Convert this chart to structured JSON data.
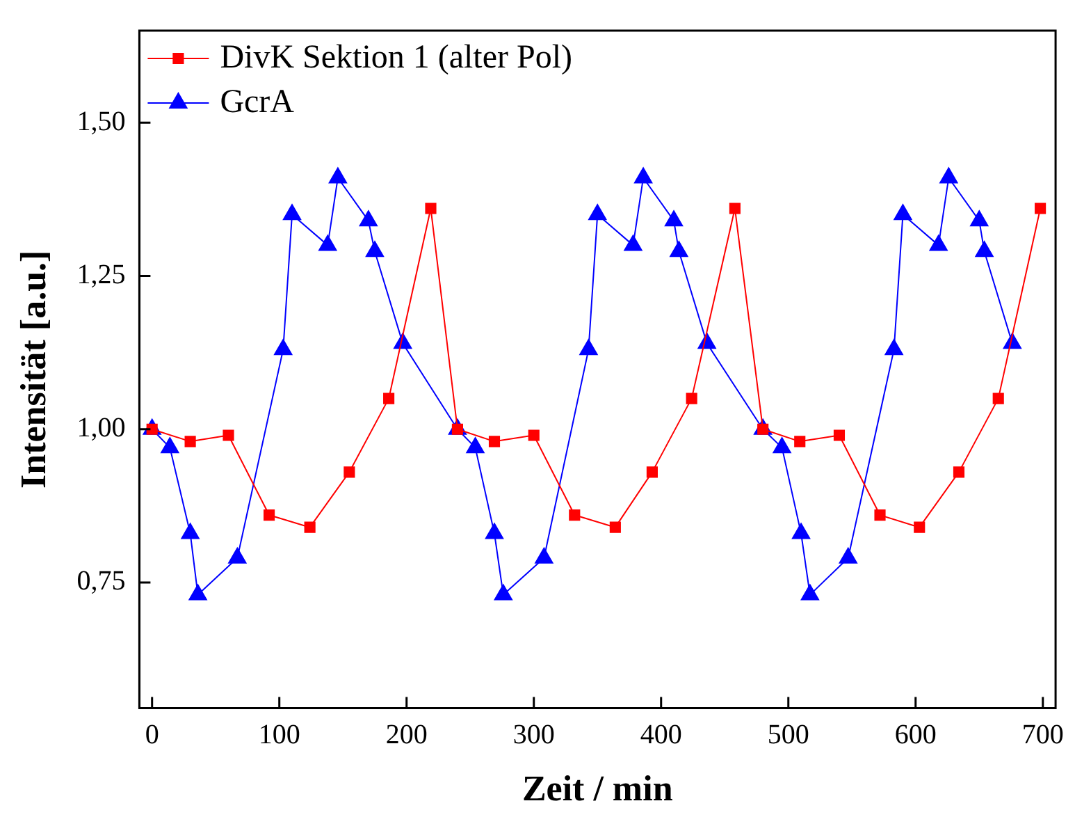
{
  "chart_data": {
    "type": "line",
    "xlabel": "Zeit / min",
    "ylabel": "Intensität [a.u.]",
    "xlim": [
      -10,
      710
    ],
    "ylim": [
      0.545,
      1.65
    ],
    "xticks": [
      0,
      100,
      200,
      300,
      400,
      500,
      600,
      700
    ],
    "yticks": [
      {
        "value": 0.75,
        "label": "0,75"
      },
      {
        "value": 1.0,
        "label": "1,00"
      },
      {
        "value": 1.25,
        "label": "1,25"
      },
      {
        "value": 1.5,
        "label": "1,50"
      }
    ],
    "grid": false,
    "legend": "top left",
    "line_style": "solid",
    "series": [
      {
        "name": "DivK Sektion 1 (alter Pol)",
        "color": "#ff0000",
        "marker": "square",
        "x": [
          0,
          30,
          60,
          92,
          124,
          155,
          186,
          219,
          240,
          269,
          300,
          332,
          364,
          393,
          424,
          458,
          480,
          509,
          540,
          572,
          603,
          634,
          665,
          698
        ],
        "values": [
          1.0,
          0.98,
          0.99,
          0.86,
          0.84,
          0.93,
          1.05,
          1.36,
          1.0,
          0.98,
          0.99,
          0.86,
          0.84,
          0.93,
          1.05,
          1.36,
          1.0,
          0.98,
          0.99,
          0.86,
          0.84,
          0.93,
          1.05,
          1.36
        ]
      },
      {
        "name": "GcrA",
        "color": "#0000ff",
        "marker": "triangle",
        "x": [
          0,
          14,
          30,
          36,
          67,
          103,
          110,
          138,
          146,
          170,
          175,
          197,
          240,
          254,
          269,
          276,
          308,
          343,
          350,
          378,
          386,
          410,
          414,
          436,
          480,
          495,
          510,
          517,
          547,
          583,
          590,
          618,
          626,
          650,
          654,
          676
        ],
        "values": [
          1.0,
          0.97,
          0.83,
          0.73,
          0.79,
          1.13,
          1.35,
          1.3,
          1.41,
          1.34,
          1.29,
          1.14,
          1.0,
          0.97,
          0.83,
          0.73,
          0.79,
          1.13,
          1.35,
          1.3,
          1.41,
          1.34,
          1.29,
          1.14,
          1.0,
          0.97,
          0.83,
          0.73,
          0.79,
          1.13,
          1.35,
          1.3,
          1.41,
          1.34,
          1.29,
          1.14
        ]
      }
    ]
  }
}
